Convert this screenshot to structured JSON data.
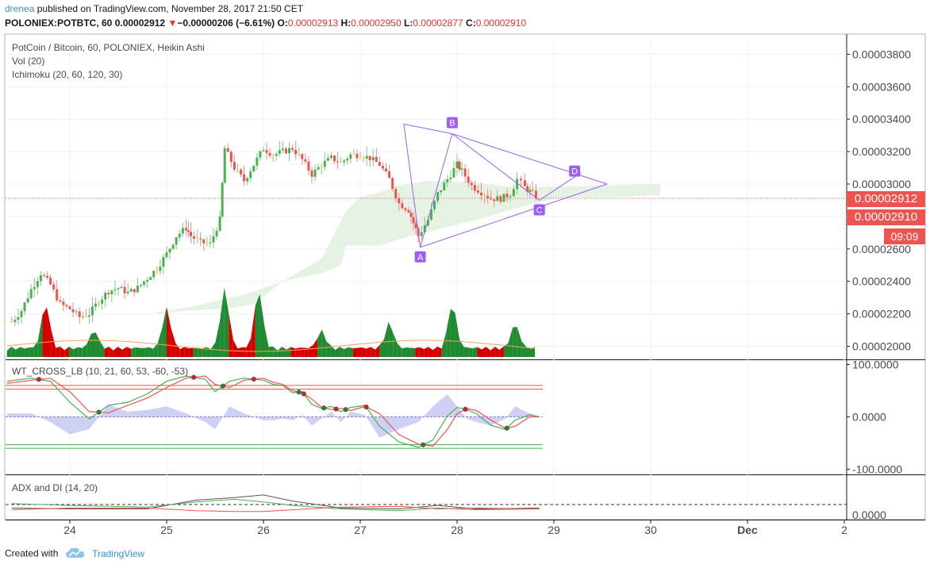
{
  "header": {
    "user": "drenea",
    "published_text": "published on TradingView.com, November 28, 2017 21:50 CET",
    "symbol": "POLONIEX:POTBTC, 60",
    "last": "0.00002912",
    "change_arrow": "▼",
    "change": "−0.00000206 (−6.61%)",
    "o_label": "O:",
    "o_value": "0.00002913",
    "h_label": "H:",
    "h_value": "0.00002950",
    "l_label": "L:",
    "l_value": "0.00002877",
    "c_label": "C:",
    "c_value": "0.00002910"
  },
  "legends": {
    "main_title": "PotCoin / Bitcoin, 60, POLONIEX, Heikin Ashi",
    "volume": "Vol (20)",
    "ichimoku": "Ichimoku (20, 60, 120, 30)",
    "wt_cross": "WT_CROSS_LB (10, 21, 60, 53, -60, -53)",
    "adx": "ADX and DI (14, 20)"
  },
  "price_labels": {
    "current": "0.00002912",
    "close": "0.00002910",
    "countdown": "09:09"
  },
  "footer": {
    "created_with": "Created with",
    "brand": "TradingView",
    "logo_icon": "tradingview-cloud-icon"
  },
  "colors": {
    "up": "#26a69a",
    "up_bright": "#4caf50",
    "down": "#ef5350",
    "doji": "#f5e511",
    "pattern": "#9c5ff5",
    "cloud": "#e3f1e1",
    "volume_up": "#1f8a2f",
    "volume_down": "#d50000",
    "axis_text": "#4a4a4a",
    "user_link": "#3e8ed0"
  },
  "chart_data": [
    {
      "type": "candlestick",
      "title": "PotCoin / Bitcoin, 60, POLONIEX, Heikin Ashi",
      "x_ticks": [
        "24",
        "25",
        "26",
        "27",
        "28",
        "29",
        "30",
        "Dec",
        "2"
      ],
      "y_ticks": [
        "0.00002000",
        "0.00002200",
        "0.00002400",
        "0.00002600",
        "0.00002800",
        "0.00003000",
        "0.00003200",
        "0.00003400",
        "0.00003600",
        "0.00003800"
      ],
      "ylim": [
        1.95e-05,
        3.88e-05
      ],
      "grid": true,
      "trend_close": [
        [
          23.4,
          2.15e-05
        ],
        [
          23.5,
          2.22e-05
        ],
        [
          23.6,
          2.35e-05
        ],
        [
          23.7,
          2.45e-05
        ],
        [
          23.8,
          2.38e-05
        ],
        [
          23.9,
          2.26e-05
        ],
        [
          24.0,
          2.23e-05
        ],
        [
          24.1,
          2.18e-05
        ],
        [
          24.2,
          2.2e-05
        ],
        [
          24.3,
          2.28e-05
        ],
        [
          24.4,
          2.34e-05
        ],
        [
          24.5,
          2.36e-05
        ],
        [
          24.6,
          2.33e-05
        ],
        [
          24.7,
          2.36e-05
        ],
        [
          24.8,
          2.42e-05
        ],
        [
          24.9,
          2.48e-05
        ],
        [
          25.0,
          2.57e-05
        ],
        [
          25.1,
          2.68e-05
        ],
        [
          25.2,
          2.73e-05
        ],
        [
          25.25,
          2.68e-05
        ],
        [
          25.35,
          2.64e-05
        ],
        [
          25.45,
          2.63e-05
        ],
        [
          25.55,
          2.78e-05
        ],
        [
          25.6,
          3.22e-05
        ],
        [
          25.7,
          3.1e-05
        ],
        [
          25.8,
          3.02e-05
        ],
        [
          25.9,
          3.12e-05
        ],
        [
          26.0,
          3.22e-05
        ],
        [
          26.1,
          3.18e-05
        ],
        [
          26.2,
          3.2e-05
        ],
        [
          26.3,
          3.22e-05
        ],
        [
          26.4,
          3.15e-05
        ],
        [
          26.5,
          3.06e-05
        ],
        [
          26.6,
          3.12e-05
        ],
        [
          26.7,
          3.16e-05
        ],
        [
          26.8,
          3.13e-05
        ],
        [
          26.9,
          3.18e-05
        ],
        [
          27.0,
          3.18e-05
        ],
        [
          27.1,
          3.16e-05
        ],
        [
          27.2,
          3.12e-05
        ],
        [
          27.3,
          3.03e-05
        ],
        [
          27.4,
          2.88e-05
        ],
        [
          27.5,
          2.84e-05
        ],
        [
          27.55,
          2.76e-05
        ],
        [
          27.6,
          2.68e-05
        ],
        [
          27.7,
          2.78e-05
        ],
        [
          27.8,
          2.94e-05
        ],
        [
          27.9,
          3.03e-05
        ],
        [
          28.0,
          3.12e-05
        ],
        [
          28.05,
          3.08e-05
        ],
        [
          28.15,
          2.99e-05
        ],
        [
          28.25,
          2.95e-05
        ],
        [
          28.35,
          2.91e-05
        ],
        [
          28.45,
          2.91e-05
        ],
        [
          28.55,
          2.94e-05
        ],
        [
          28.62,
          3.03e-05
        ],
        [
          28.7,
          2.98e-05
        ],
        [
          28.78,
          2.94e-05
        ],
        [
          28.85,
          2.91e-05
        ]
      ],
      "pattern_points": [
        {
          "label": "A",
          "x": 27.62,
          "y": 2.61e-05
        },
        {
          "label": "B",
          "x": 27.95,
          "y": 3.31e-05
        },
        {
          "label": "C",
          "x": 28.85,
          "y": 2.9e-05
        },
        {
          "label": "D",
          "x": 29.28,
          "y": 3.07e-05
        }
      ],
      "current_price": 2.912e-05
    },
    {
      "type": "line",
      "title": "WT_CROSS_LB (10, 21, 60, 53, -60, -53)",
      "y_ticks": [
        "100.0000",
        "0.0000",
        "-100.0000"
      ],
      "ylim": [
        -108,
        108
      ],
      "levels": [
        60,
        53,
        -60,
        -53
      ],
      "wt1": [
        [
          23.35,
          68
        ],
        [
          23.6,
          74
        ],
        [
          23.8,
          68
        ],
        [
          24.0,
          28
        ],
        [
          24.2,
          -4
        ],
        [
          24.4,
          22
        ],
        [
          24.6,
          28
        ],
        [
          24.8,
          44
        ],
        [
          25.0,
          68
        ],
        [
          25.2,
          78
        ],
        [
          25.4,
          72
        ],
        [
          25.5,
          48
        ],
        [
          25.65,
          68
        ],
        [
          25.8,
          74
        ],
        [
          26.0,
          70
        ],
        [
          26.1,
          62
        ],
        [
          26.2,
          60
        ],
        [
          26.3,
          46
        ],
        [
          26.4,
          48
        ],
        [
          26.5,
          24
        ],
        [
          26.6,
          16
        ],
        [
          26.7,
          20
        ],
        [
          26.8,
          10
        ],
        [
          26.9,
          18
        ],
        [
          27.05,
          22
        ],
        [
          27.2,
          -18
        ],
        [
          27.4,
          -48
        ],
        [
          27.6,
          -58
        ],
        [
          27.75,
          -44
        ],
        [
          27.9,
          2
        ],
        [
          28.0,
          18
        ],
        [
          28.1,
          14
        ],
        [
          28.2,
          6
        ],
        [
          28.35,
          -16
        ],
        [
          28.5,
          -24
        ],
        [
          28.6,
          -6
        ],
        [
          28.75,
          4
        ],
        [
          28.85,
          0
        ]
      ],
      "wt2": [
        [
          23.35,
          64
        ],
        [
          23.6,
          70
        ],
        [
          23.8,
          74
        ],
        [
          24.0,
          48
        ],
        [
          24.2,
          10
        ],
        [
          24.4,
          8
        ],
        [
          24.6,
          22
        ],
        [
          24.8,
          36
        ],
        [
          25.0,
          56
        ],
        [
          25.2,
          74
        ],
        [
          25.4,
          78
        ],
        [
          25.5,
          62
        ],
        [
          25.65,
          56
        ],
        [
          25.8,
          70
        ],
        [
          26.0,
          74
        ],
        [
          26.1,
          66
        ],
        [
          26.2,
          62
        ],
        [
          26.3,
          50
        ],
        [
          26.4,
          46
        ],
        [
          26.5,
          34
        ],
        [
          26.6,
          18
        ],
        [
          26.7,
          14
        ],
        [
          26.8,
          16
        ],
        [
          26.9,
          12
        ],
        [
          27.05,
          20
        ],
        [
          27.2,
          6
        ],
        [
          27.4,
          -34
        ],
        [
          27.6,
          -52
        ],
        [
          27.75,
          -56
        ],
        [
          27.9,
          -24
        ],
        [
          28.0,
          6
        ],
        [
          28.1,
          16
        ],
        [
          28.2,
          12
        ],
        [
          28.35,
          -6
        ],
        [
          28.5,
          -22
        ],
        [
          28.6,
          -18
        ],
        [
          28.75,
          0
        ],
        [
          28.85,
          0
        ]
      ]
    },
    {
      "type": "line",
      "title": "ADX and DI (14, 20)",
      "y_ticks": [
        "0.0000"
      ],
      "ylim": [
        -4,
        90
      ],
      "adx": [
        [
          23.4,
          12
        ],
        [
          24.0,
          10
        ],
        [
          24.8,
          10
        ],
        [
          25.3,
          30
        ],
        [
          25.7,
          36
        ],
        [
          26.0,
          42
        ],
        [
          26.3,
          28
        ],
        [
          26.8,
          12
        ],
        [
          27.4,
          10
        ],
        [
          27.8,
          18
        ],
        [
          28.2,
          10
        ],
        [
          28.85,
          12
        ]
      ],
      "di_plus": [
        [
          23.4,
          22
        ],
        [
          24.0,
          18
        ],
        [
          24.8,
          14
        ],
        [
          25.3,
          26
        ],
        [
          25.7,
          32
        ],
        [
          26.0,
          26
        ],
        [
          26.3,
          18
        ],
        [
          26.8,
          10
        ],
        [
          27.4,
          6
        ],
        [
          27.8,
          12
        ],
        [
          28.2,
          8
        ],
        [
          28.85,
          10
        ]
      ],
      "di_minus": [
        [
          23.4,
          8
        ],
        [
          24.0,
          12
        ],
        [
          24.8,
          12
        ],
        [
          25.3,
          6
        ],
        [
          25.7,
          4
        ],
        [
          26.0,
          4
        ],
        [
          26.3,
          8
        ],
        [
          26.8,
          14
        ],
        [
          27.4,
          16
        ],
        [
          27.8,
          10
        ],
        [
          28.2,
          12
        ],
        [
          28.85,
          10
        ]
      ],
      "threshold": 20
    }
  ]
}
